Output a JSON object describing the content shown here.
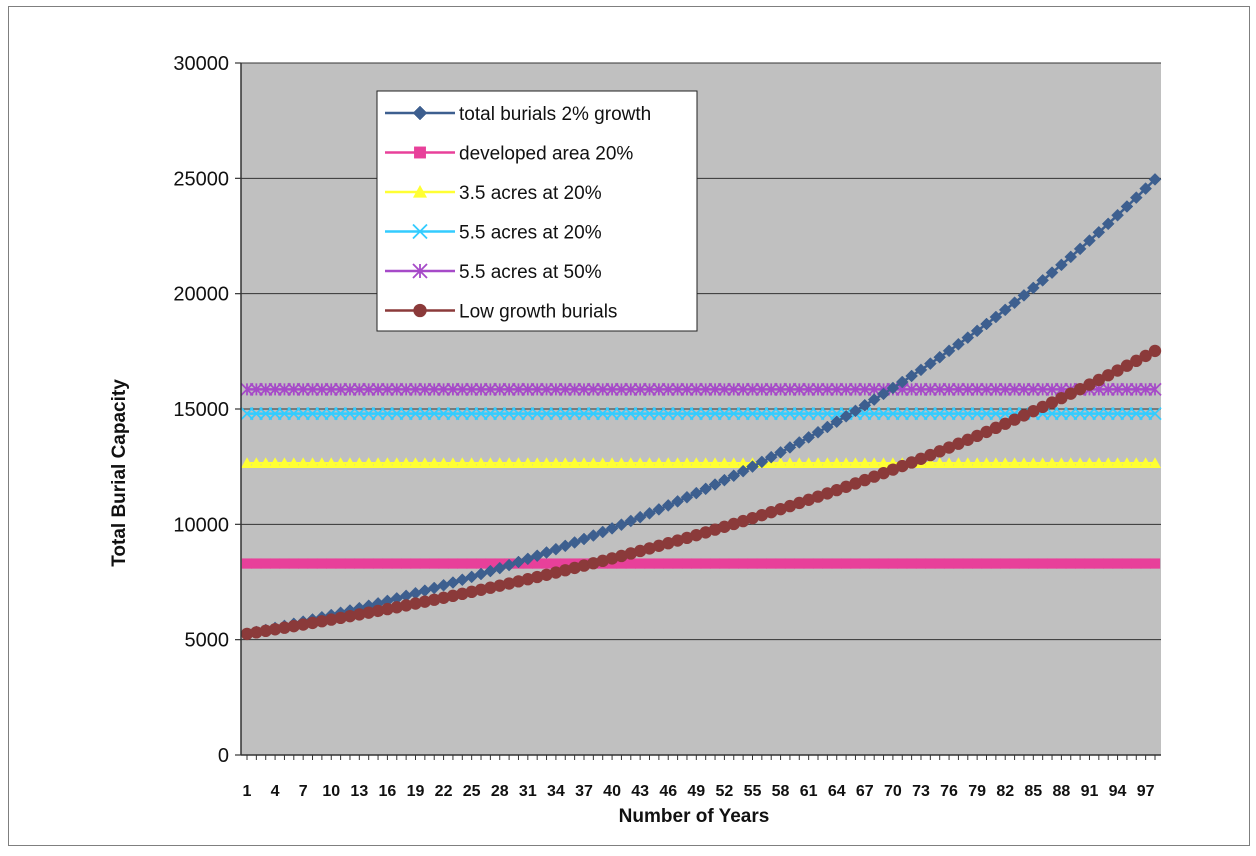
{
  "chart_data": {
    "type": "line",
    "title": "",
    "xlabel": "Number of Years",
    "ylabel": "Total Burial Capacity",
    "x_start": 1,
    "x_end": 98,
    "x_tick_labels": [
      1,
      4,
      7,
      10,
      13,
      16,
      19,
      22,
      25,
      28,
      31,
      34,
      37,
      40,
      43,
      46,
      49,
      52,
      55,
      58,
      61,
      64,
      67,
      70,
      73,
      76,
      79,
      82,
      85,
      88,
      91,
      94,
      97
    ],
    "ylim": [
      0,
      30000
    ],
    "y_ticks": [
      0,
      5000,
      10000,
      15000,
      20000,
      25000,
      30000
    ],
    "grid": "horizontal",
    "legend_position": "top-left inside plot",
    "plot_background": "#c0c0c0",
    "series": [
      {
        "name": "total burials 2% growth",
        "marker": "diamond",
        "color": "#3d5f8f",
        "start": 5250,
        "growth_rate": 0.0162
      },
      {
        "name": "developed area 20%",
        "marker": "square",
        "color": "#e8409a",
        "constant": 8300
      },
      {
        "name": "3.5 acres at 20%",
        "marker": "triangle",
        "color": "#ffff33",
        "constant": 12650
      },
      {
        "name": "5.5 acres at 20%",
        "marker": "x",
        "color": "#33ccff",
        "constant": 14800
      },
      {
        "name": "5.5 acres at 50%",
        "marker": "star",
        "color": "#a64ac8",
        "constant": 15850
      },
      {
        "name": "Low growth burials",
        "marker": "circle",
        "color": "#8b3a3a",
        "start": 5250,
        "growth_rate": 0.0125
      }
    ]
  }
}
